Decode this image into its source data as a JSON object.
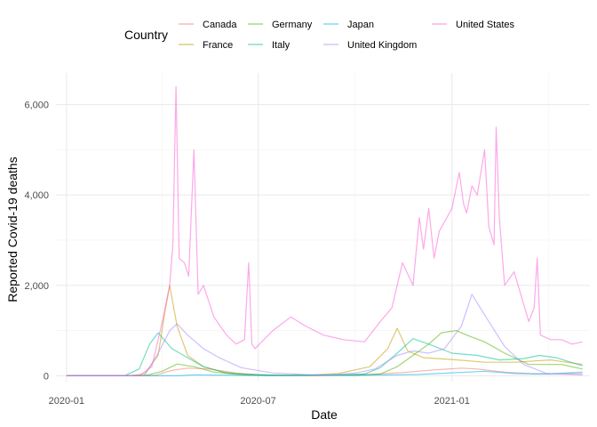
{
  "chart_data": {
    "type": "line",
    "xlabel": "Date",
    "ylabel": "Reported Covid-19 deaths",
    "x_domain": [
      "2019-12-22",
      "2021-05-12"
    ],
    "x_ticks": [
      {
        "date": "2020-01-01",
        "label": "2020-01"
      },
      {
        "date": "2020-07-01",
        "label": "2020-07"
      },
      {
        "date": "2021-01-01",
        "label": "2021-01"
      }
    ],
    "ylim": [
      -130,
      6700
    ],
    "y_ticks": [
      {
        "value": 0,
        "label": "0"
      },
      {
        "value": 2000,
        "label": "2,000"
      },
      {
        "value": 4000,
        "label": "4,000"
      },
      {
        "value": 6000,
        "label": "6,000"
      }
    ],
    "grid": true,
    "legend": {
      "title": "Country",
      "position": "top"
    },
    "series": [
      {
        "name": "Canada",
        "color": "#F8766D",
        "x": [
          "2020-01-01",
          "2020-03-10",
          "2020-03-25",
          "2020-04-10",
          "2020-04-25",
          "2020-05-15",
          "2020-06-10",
          "2020-07-10",
          "2020-09-01",
          "2020-10-15",
          "2020-11-15",
          "2020-12-15",
          "2021-01-10",
          "2021-01-25",
          "2021-02-20",
          "2021-03-20",
          "2021-04-20",
          "2021-05-05"
        ],
        "y": [
          0,
          0,
          10,
          120,
          170,
          150,
          60,
          10,
          5,
          30,
          70,
          130,
          170,
          150,
          80,
          40,
          45,
          45
        ]
      },
      {
        "name": "France",
        "color": "#C49A00",
        "x": [
          "2020-01-01",
          "2020-03-01",
          "2020-03-15",
          "2020-03-28",
          "2020-04-03",
          "2020-04-08",
          "2020-04-15",
          "2020-04-25",
          "2020-05-10",
          "2020-06-01",
          "2020-07-01",
          "2020-08-15",
          "2020-09-15",
          "2020-10-15",
          "2020-11-01",
          "2020-11-10",
          "2020-11-20",
          "2020-12-05",
          "2021-01-01",
          "2021-02-01",
          "2021-03-01",
          "2021-04-05",
          "2021-04-20",
          "2021-05-05"
        ],
        "y": [
          0,
          0,
          40,
          450,
          1350,
          2000,
          1100,
          450,
          200,
          60,
          15,
          10,
          50,
          200,
          600,
          1050,
          550,
          400,
          360,
          300,
          300,
          350,
          300,
          250
        ]
      },
      {
        "name": "Germany",
        "color": "#53B400",
        "x": [
          "2020-01-01",
          "2020-03-15",
          "2020-04-01",
          "2020-04-15",
          "2020-05-01",
          "2020-05-20",
          "2020-06-15",
          "2020-08-01",
          "2020-10-01",
          "2020-10-25",
          "2020-11-10",
          "2020-11-25",
          "2020-12-10",
          "2020-12-22",
          "2021-01-05",
          "2021-01-15",
          "2021-02-01",
          "2021-02-20",
          "2021-03-15",
          "2021-04-15",
          "2021-05-05"
        ],
        "y": [
          0,
          0,
          100,
          260,
          200,
          80,
          20,
          5,
          10,
          40,
          200,
          450,
          700,
          950,
          1000,
          900,
          750,
          500,
          250,
          250,
          150
        ]
      },
      {
        "name": "Italy",
        "color": "#00C094",
        "x": [
          "2020-01-01",
          "2020-02-25",
          "2020-03-10",
          "2020-03-20",
          "2020-03-28",
          "2020-04-10",
          "2020-04-25",
          "2020-05-10",
          "2020-05-30",
          "2020-06-20",
          "2020-07-15",
          "2020-08-01",
          "2020-08-20",
          "2020-09-15",
          "2020-10-10",
          "2020-10-25",
          "2020-11-10",
          "2020-11-25",
          "2020-12-10",
          "2021-01-01",
          "2021-01-25",
          "2021-02-15",
          "2021-03-10",
          "2021-03-25",
          "2021-04-10",
          "2021-05-05"
        ],
        "y": [
          0,
          0,
          150,
          700,
          950,
          600,
          400,
          200,
          70,
          30,
          15,
          10,
          15,
          20,
          40,
          180,
          500,
          820,
          700,
          500,
          450,
          350,
          380,
          450,
          400,
          220
        ]
      },
      {
        "name": "Japan",
        "color": "#00B6EB",
        "x": [
          "2020-01-01",
          "2020-04-15",
          "2020-05-01",
          "2020-05-20",
          "2020-07-15",
          "2020-08-20",
          "2020-10-01",
          "2020-12-01",
          "2021-01-15",
          "2021-02-01",
          "2021-03-01",
          "2021-04-01",
          "2021-05-05"
        ],
        "y": [
          0,
          0,
          20,
          15,
          2,
          15,
          8,
          30,
          80,
          100,
          50,
          40,
          80
        ]
      },
      {
        "name": "United Kingdom",
        "color": "#A58AFF",
        "x": [
          "2020-01-01",
          "2020-03-15",
          "2020-03-28",
          "2020-04-08",
          "2020-04-15",
          "2020-04-25",
          "2020-05-10",
          "2020-05-25",
          "2020-06-15",
          "2020-07-15",
          "2020-09-01",
          "2020-10-01",
          "2020-10-20",
          "2020-11-10",
          "2020-11-25",
          "2020-12-10",
          "2020-12-25",
          "2021-01-10",
          "2021-01-20",
          "2021-02-05",
          "2021-02-20",
          "2021-03-10",
          "2021-04-01",
          "2021-05-05"
        ],
        "y": [
          0,
          0,
          500,
          1000,
          1150,
          900,
          600,
          400,
          180,
          60,
          10,
          60,
          150,
          450,
          550,
          500,
          600,
          1100,
          1800,
          1200,
          650,
          250,
          50,
          20
        ]
      },
      {
        "name": "United States",
        "color": "#FB61D7",
        "x": [
          "2020-01-01",
          "2020-03-10",
          "2020-03-22",
          "2020-04-01",
          "2020-04-08",
          "2020-04-11",
          "2020-04-14",
          "2020-04-17",
          "2020-04-22",
          "2020-04-26",
          "2020-05-01",
          "2020-05-05",
          "2020-05-10",
          "2020-05-20",
          "2020-06-01",
          "2020-06-10",
          "2020-06-18",
          "2020-06-22",
          "2020-06-25",
          "2020-06-28",
          "2020-07-15",
          "2020-08-01",
          "2020-08-15",
          "2020-09-01",
          "2020-09-20",
          "2020-10-10",
          "2020-10-25",
          "2020-11-05",
          "2020-11-15",
          "2020-11-25",
          "2020-12-01",
          "2020-12-05",
          "2020-12-10",
          "2020-12-15",
          "2020-12-20",
          "2021-01-01",
          "2021-01-08",
          "2021-01-12",
          "2021-01-15",
          "2021-01-20",
          "2021-01-25",
          "2021-02-01",
          "2021-02-05",
          "2021-02-10",
          "2021-02-12",
          "2021-02-15",
          "2021-02-20",
          "2021-03-01",
          "2021-03-15",
          "2021-03-20",
          "2021-03-23",
          "2021-03-26",
          "2021-04-05",
          "2021-04-15",
          "2021-04-25",
          "2021-05-05"
        ],
        "y": [
          0,
          0,
          200,
          1200,
          2000,
          2900,
          6400,
          2600,
          2500,
          2200,
          5000,
          1800,
          2000,
          1300,
          900,
          700,
          800,
          2500,
          700,
          600,
          1000,
          1300,
          1100,
          900,
          800,
          750,
          1200,
          1500,
          2500,
          2000,
          3500,
          2800,
          3700,
          2600,
          3200,
          3700,
          4500,
          3800,
          3600,
          4200,
          4000,
          5000,
          3300,
          2900,
          5500,
          3500,
          2000,
          2300,
          1200,
          1500,
          2600,
          900,
          800,
          800,
          700,
          750
        ]
      }
    ]
  }
}
